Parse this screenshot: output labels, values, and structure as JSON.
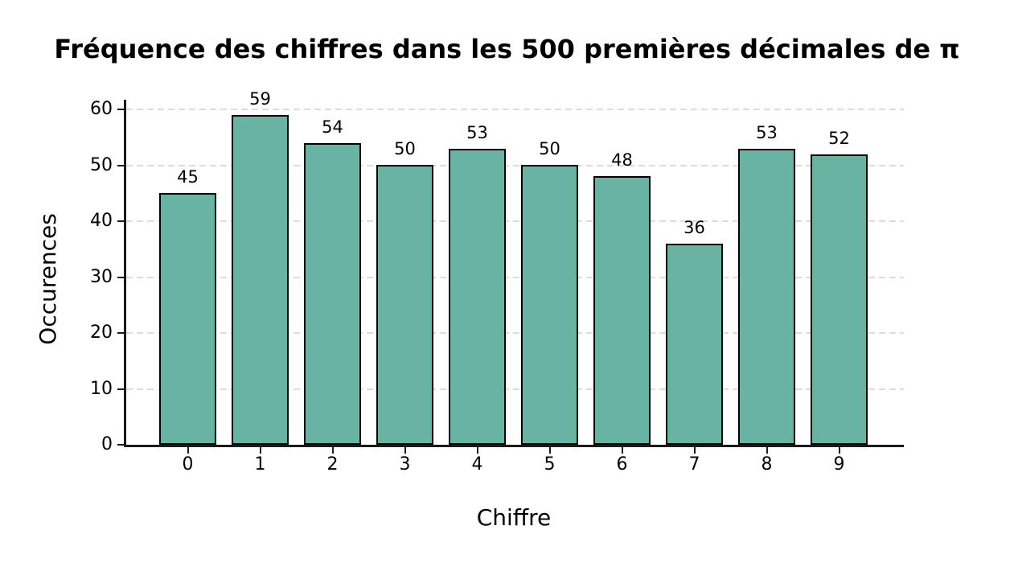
{
  "title": "Fréquence des chiffres dans les 500 premières décimales de π",
  "chart_data": {
    "type": "bar",
    "title": "Fréquence des chiffres dans les 500 premières décimales de π",
    "categories": [
      "0",
      "1",
      "2",
      "3",
      "4",
      "5",
      "6",
      "7",
      "8",
      "9"
    ],
    "values": [
      45,
      59,
      54,
      50,
      53,
      50,
      48,
      36,
      53,
      52
    ],
    "value_labels": [
      "45",
      "59",
      "54",
      "50",
      "53",
      "50",
      "48",
      "36",
      "53",
      "52"
    ],
    "xlabel": "Chiffre",
    "ylabel": "Occurences",
    "ylim": [
      0,
      62
    ],
    "yticks": [
      0,
      10,
      20,
      30,
      40,
      50,
      60
    ],
    "legend": "none",
    "grid": "horizontal dashed",
    "bar_color": "#69b3a2",
    "bar_edge_color": "#000000",
    "grid_color": "#dcdcdc",
    "axis_color": "#1a1a1a",
    "background_color": "#ffffff"
  }
}
